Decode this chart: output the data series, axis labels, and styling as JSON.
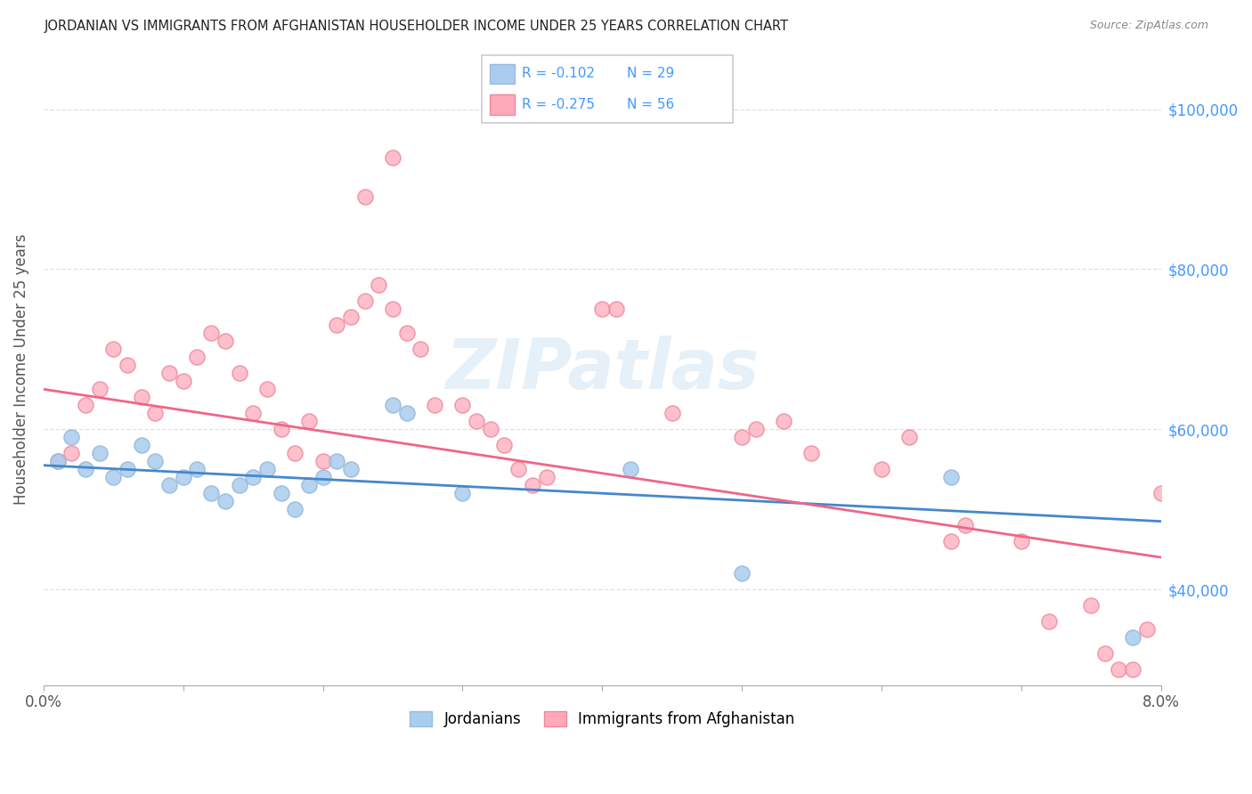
{
  "title": "JORDANIAN VS IMMIGRANTS FROM AFGHANISTAN HOUSEHOLDER INCOME UNDER 25 YEARS CORRELATION CHART",
  "source": "Source: ZipAtlas.com",
  "ylabel": "Householder Income Under 25 years",
  "xlim": [
    0.0,
    0.08
  ],
  "ylim": [
    28000,
    107000
  ],
  "yticks": [
    40000,
    60000,
    80000,
    100000
  ],
  "ytick_labels": [
    "$40,000",
    "$60,000",
    "$80,000",
    "$100,000"
  ],
  "xticks": [
    0.0,
    0.01,
    0.02,
    0.03,
    0.04,
    0.05,
    0.06,
    0.07,
    0.08
  ],
  "xtick_labels": [
    "0.0%",
    "",
    "",
    "",
    "",
    "",
    "",
    "",
    "8.0%"
  ],
  "blue_color": "#aaccee",
  "pink_color": "#ffaabb",
  "blue_edge": "#99bbdd",
  "pink_edge": "#ee8899",
  "blue_line_color": "#4488cc",
  "pink_line_color": "#ee6688",
  "legend_text_color": "#4499ff",
  "legend_R_blue": "-0.102",
  "legend_N_blue": "29",
  "legend_R_pink": "-0.275",
  "legend_N_pink": "56",
  "legend_label_blue": "Jordanians",
  "legend_label_pink": "Immigrants from Afghanistan",
  "watermark": "ZIPatlas",
  "blue_x": [
    0.001,
    0.002,
    0.003,
    0.004,
    0.005,
    0.006,
    0.007,
    0.008,
    0.009,
    0.01,
    0.011,
    0.012,
    0.013,
    0.014,
    0.015,
    0.016,
    0.017,
    0.018,
    0.019,
    0.02,
    0.021,
    0.022,
    0.025,
    0.026,
    0.03,
    0.042,
    0.05,
    0.065,
    0.078
  ],
  "blue_y": [
    56000,
    59000,
    55000,
    57000,
    54000,
    55000,
    58000,
    56000,
    53000,
    54000,
    55000,
    52000,
    51000,
    53000,
    54000,
    55000,
    52000,
    50000,
    53000,
    54000,
    56000,
    55000,
    63000,
    62000,
    52000,
    55000,
    42000,
    54000,
    34000
  ],
  "pink_x": [
    0.001,
    0.002,
    0.003,
    0.004,
    0.005,
    0.006,
    0.007,
    0.008,
    0.009,
    0.01,
    0.011,
    0.012,
    0.013,
    0.014,
    0.015,
    0.016,
    0.017,
    0.018,
    0.019,
    0.02,
    0.021,
    0.022,
    0.023,
    0.024,
    0.025,
    0.026,
    0.027,
    0.028,
    0.03,
    0.031,
    0.032,
    0.033,
    0.034,
    0.035,
    0.036,
    0.04,
    0.041,
    0.045,
    0.05,
    0.051,
    0.053,
    0.055,
    0.06,
    0.062,
    0.065,
    0.066,
    0.07,
    0.072,
    0.075,
    0.076,
    0.077,
    0.078,
    0.079,
    0.08,
    0.023,
    0.025
  ],
  "pink_y": [
    56000,
    57000,
    63000,
    65000,
    70000,
    68000,
    64000,
    62000,
    67000,
    66000,
    69000,
    72000,
    71000,
    67000,
    62000,
    65000,
    60000,
    57000,
    61000,
    56000,
    73000,
    74000,
    76000,
    78000,
    75000,
    72000,
    70000,
    63000,
    63000,
    61000,
    60000,
    58000,
    55000,
    53000,
    54000,
    75000,
    75000,
    62000,
    59000,
    60000,
    61000,
    57000,
    55000,
    59000,
    46000,
    48000,
    46000,
    36000,
    38000,
    32000,
    30000,
    30000,
    35000,
    52000,
    89000,
    94000
  ]
}
